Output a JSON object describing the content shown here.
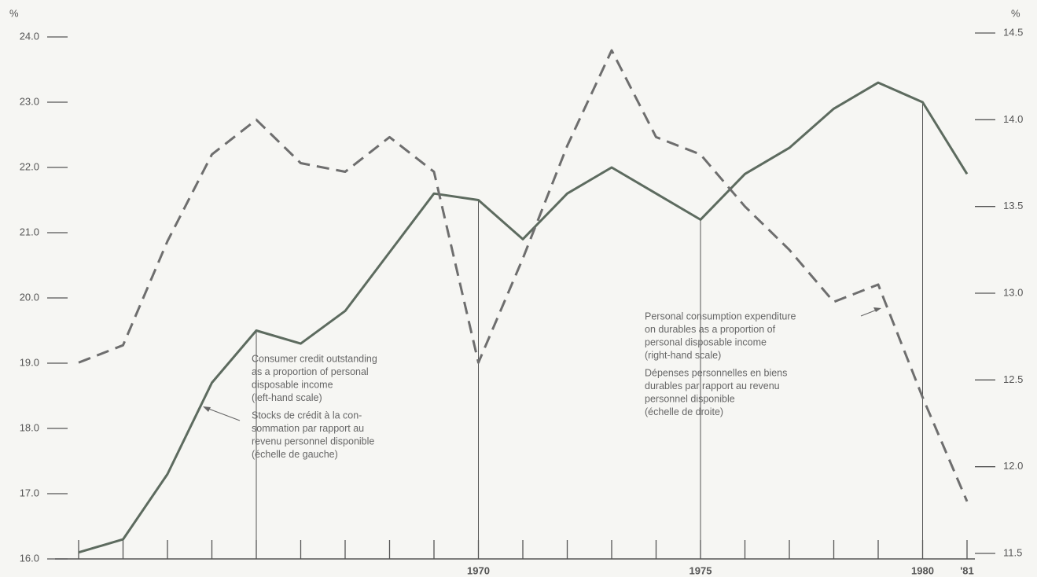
{
  "chart_data": {
    "type": "line",
    "categories": [
      null,
      null,
      null,
      null,
      null,
      null,
      null,
      null,
      null,
      "1970",
      null,
      null,
      null,
      null,
      "1975",
      null,
      null,
      null,
      null,
      "1980",
      "'81"
    ],
    "series": [
      {
        "color": "#5d6b5f",
        "dash": false,
        "axis": "y",
        "values": [
          16.1,
          16.3,
          17.3,
          18.7,
          19.5,
          19.3,
          19.8,
          20.7,
          21.6,
          21.5,
          20.9,
          21.6,
          22.0,
          21.6,
          21.2,
          21.9,
          22.3,
          22.9,
          23.3,
          23.0,
          21.9
        ]
      },
      {
        "color": "#6e6e6e",
        "dash": true,
        "axis": "y2",
        "values": [
          12.6,
          12.7,
          13.3,
          13.8,
          14.0,
          13.75,
          13.7,
          13.9,
          13.7,
          12.6,
          13.2,
          13.85,
          14.4,
          13.9,
          13.8,
          13.5,
          13.25,
          12.95,
          13.05,
          12.4,
          11.8
        ]
      }
    ],
    "drop_lines": [
      "1965",
      "1970",
      "1975",
      "1980"
    ],
    "ylabel": "%",
    "y2label": "%",
    "ylim": [
      16,
      24
    ],
    "yticks": [
      {
        "value": 16,
        "label": "16.0"
      },
      {
        "value": 17,
        "label": "17.0"
      },
      {
        "value": 18,
        "label": "18.0"
      },
      {
        "value": 19,
        "label": "19.0"
      },
      {
        "value": 20,
        "label": "20.0"
      },
      {
        "value": 21,
        "label": "21.0"
      },
      {
        "value": 22,
        "label": "22.0"
      },
      {
        "value": 23,
        "label": "23.0"
      },
      {
        "value": 24,
        "label": "24.0"
      }
    ],
    "y2lim": [
      11.5,
      14.5
    ],
    "y2ticks": [
      11.5,
      {
        "value": 12,
        "label": "12.0"
      },
      12.5,
      {
        "value": 13,
        "label": "13.0"
      },
      13.5,
      {
        "value": 14,
        "label": "14.0"
      },
      14.5
    ],
    "annotations": [
      {
        "lines": [
          "Consumer credit outstanding",
          "as a proportion of personal",
          "disposable income",
          "(left-hand scale)",
          "Stocks de crédit à la con-",
          "sommation par rapport au",
          "revenu personnel disponible",
          "(échelle de gauche)"
        ]
      },
      {
        "lines": [
          "Personal consumption expenditure",
          "on durables as a proportion of",
          "personal disposable income",
          "(right-hand scale)",
          "Dépenses personnelles en biens",
          "durables par rapport au revenu",
          "personnel disponible",
          "(échelle de droite)"
        ]
      }
    ]
  }
}
